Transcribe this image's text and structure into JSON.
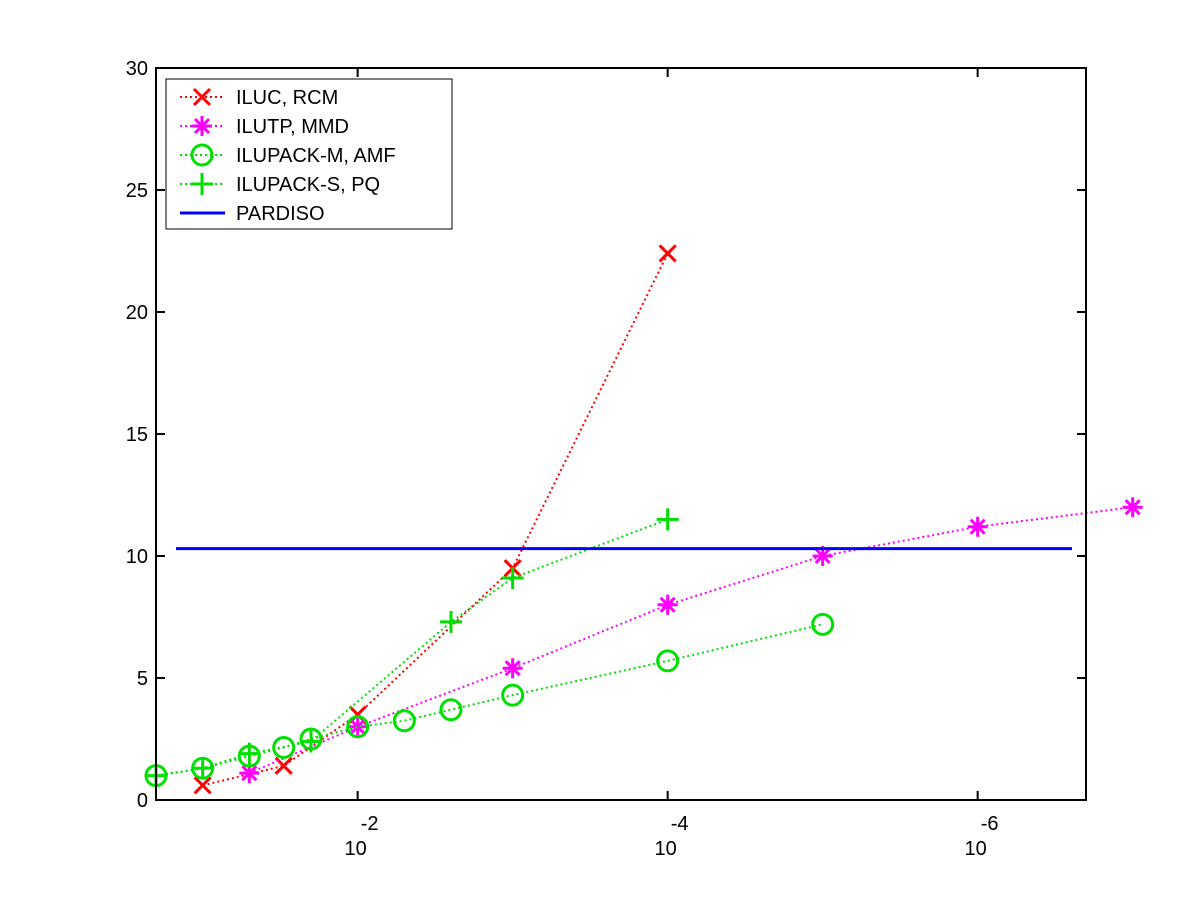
{
  "chart_data": {
    "type": "line",
    "title": "",
    "xlabel": "",
    "ylabel": "",
    "x_scale": "log",
    "x_reversed": true,
    "xlim": [
      0.2,
      2e-07
    ],
    "ylim": [
      0,
      30
    ],
    "grid": false,
    "legend_position": "top-left",
    "x_ticks": [
      {
        "value": 0.01,
        "base": "10",
        "exp": "-2"
      },
      {
        "value": 0.0001,
        "base": "10",
        "exp": "-4"
      },
      {
        "value": 1e-06,
        "base": "10",
        "exp": "-6"
      }
    ],
    "y_ticks": [
      {
        "value": 0,
        "label": "0"
      },
      {
        "value": 5,
        "label": "5"
      },
      {
        "value": 10,
        "label": "10"
      },
      {
        "value": 15,
        "label": "15"
      },
      {
        "value": 20,
        "label": "20"
      },
      {
        "value": 25,
        "label": "25"
      },
      {
        "value": 30,
        "label": "30"
      }
    ],
    "series": [
      {
        "name": "ILUC, RCM",
        "color": "#ff0000",
        "marker": "x",
        "line": "dotted",
        "points": [
          [
            0.1,
            0.6
          ],
          [
            0.03,
            1.4
          ],
          [
            0.01,
            3.5
          ],
          [
            0.001,
            9.5
          ],
          [
            0.0001,
            22.4
          ]
        ]
      },
      {
        "name": "ILUTP, MMD",
        "color": "#ff00ff",
        "marker": "star",
        "line": "dotted",
        "points": [
          [
            0.05,
            1.1
          ],
          [
            0.01,
            3.0
          ],
          [
            0.001,
            5.4
          ],
          [
            0.0001,
            8.0
          ],
          [
            1e-05,
            10.0
          ],
          [
            1e-06,
            11.2
          ],
          [
            1e-07,
            12.0
          ]
        ]
      },
      {
        "name": "ILUPACK-M, AMF",
        "color": "#00e000",
        "marker": "circle",
        "line": "dotted",
        "points": [
          [
            0.2,
            1.0
          ],
          [
            0.1,
            1.3
          ],
          [
            0.05,
            1.8
          ],
          [
            0.03,
            2.15
          ],
          [
            0.02,
            2.5
          ],
          [
            0.01,
            3.0
          ],
          [
            0.005,
            3.25
          ],
          [
            0.0025,
            3.7
          ],
          [
            0.001,
            4.3
          ],
          [
            0.0001,
            5.7
          ],
          [
            1e-05,
            7.2
          ]
        ]
      },
      {
        "name": "ILUPACK-S, PQ",
        "color": "#00e000",
        "marker": "plus",
        "line": "dotted",
        "points": [
          [
            0.2,
            1.0
          ],
          [
            0.1,
            1.3
          ],
          [
            0.05,
            1.9
          ],
          [
            0.02,
            2.4
          ],
          [
            0.0025,
            7.3
          ],
          [
            0.001,
            9.1
          ],
          [
            0.0001,
            11.5
          ]
        ]
      },
      {
        "name": "PARDISO",
        "color": "#0000ff",
        "marker": "none",
        "line": "solid",
        "y_constant": 10.3
      }
    ]
  }
}
